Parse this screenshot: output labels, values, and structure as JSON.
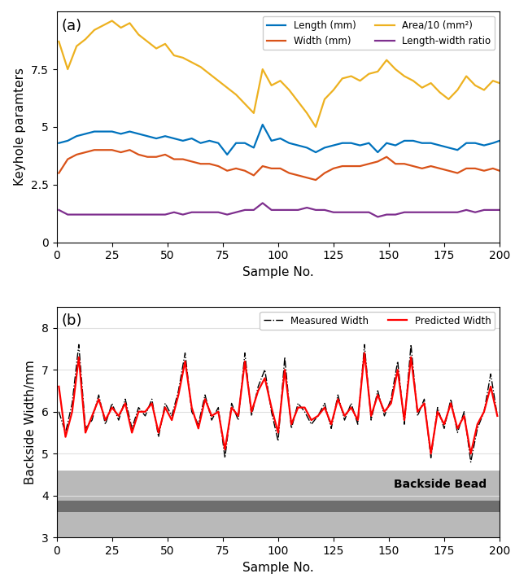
{
  "chart_data": [
    {
      "type": "line",
      "title": "(a)",
      "xlabel": "Sample No.",
      "ylabel": "Keyhole paramters",
      "x": [
        1,
        5,
        9,
        13,
        17,
        21,
        25,
        29,
        33,
        37,
        41,
        45,
        49,
        53,
        57,
        61,
        65,
        69,
        73,
        77,
        81,
        85,
        89,
        93,
        97,
        101,
        105,
        109,
        113,
        117,
        121,
        125,
        129,
        133,
        137,
        141,
        145,
        149,
        153,
        157,
        161,
        165,
        169,
        173,
        177,
        181,
        185,
        189,
        193,
        197,
        200
      ],
      "series": [
        {
          "name": "Length (mm)",
          "color": "#0072BD",
          "line_style": "solid",
          "values": [
            4.3,
            4.4,
            4.6,
            4.7,
            4.8,
            4.8,
            4.8,
            4.7,
            4.8,
            4.7,
            4.6,
            4.5,
            4.6,
            4.5,
            4.4,
            4.5,
            4.3,
            4.4,
            4.3,
            3.8,
            4.3,
            4.3,
            4.1,
            5.1,
            4.4,
            4.5,
            4.3,
            4.2,
            4.1,
            3.9,
            4.1,
            4.2,
            4.3,
            4.3,
            4.2,
            4.3,
            3.9,
            4.3,
            4.2,
            4.4,
            4.4,
            4.3,
            4.3,
            4.2,
            4.1,
            4.0,
            4.3,
            4.3,
            4.2,
            4.3,
            4.4
          ]
        },
        {
          "name": "Width (mm)",
          "color": "#D95319",
          "line_style": "solid",
          "values": [
            3.0,
            3.6,
            3.8,
            3.9,
            4.0,
            4.0,
            4.0,
            3.9,
            4.0,
            3.8,
            3.7,
            3.7,
            3.8,
            3.6,
            3.6,
            3.5,
            3.4,
            3.4,
            3.3,
            3.1,
            3.2,
            3.1,
            2.9,
            3.3,
            3.2,
            3.2,
            3.0,
            2.9,
            2.8,
            2.7,
            3.0,
            3.2,
            3.3,
            3.3,
            3.3,
            3.4,
            3.5,
            3.7,
            3.4,
            3.4,
            3.3,
            3.2,
            3.3,
            3.2,
            3.1,
            3.0,
            3.2,
            3.2,
            3.1,
            3.2,
            3.1
          ]
        },
        {
          "name": "Area/10 (mm²)",
          "color": "#EDB120",
          "line_style": "solid",
          "values": [
            8.7,
            7.5,
            8.5,
            8.8,
            9.2,
            9.4,
            9.6,
            9.3,
            9.5,
            9.0,
            8.7,
            8.4,
            8.6,
            8.1,
            8.0,
            7.8,
            7.6,
            7.3,
            7.0,
            6.7,
            6.4,
            6.0,
            5.6,
            7.5,
            6.8,
            7.0,
            6.6,
            6.1,
            5.6,
            5.0,
            6.2,
            6.6,
            7.1,
            7.2,
            7.0,
            7.3,
            7.4,
            7.9,
            7.5,
            7.2,
            7.0,
            6.7,
            6.9,
            6.5,
            6.2,
            6.6,
            7.2,
            6.8,
            6.6,
            7.0,
            6.9
          ]
        },
        {
          "name": "Length-width ratio",
          "color": "#7E2F8E",
          "line_style": "solid",
          "values": [
            1.4,
            1.2,
            1.2,
            1.2,
            1.2,
            1.2,
            1.2,
            1.2,
            1.2,
            1.2,
            1.2,
            1.2,
            1.2,
            1.3,
            1.2,
            1.3,
            1.3,
            1.3,
            1.3,
            1.2,
            1.3,
            1.4,
            1.4,
            1.7,
            1.4,
            1.4,
            1.4,
            1.4,
            1.5,
            1.4,
            1.4,
            1.3,
            1.3,
            1.3,
            1.3,
            1.3,
            1.1,
            1.2,
            1.2,
            1.3,
            1.3,
            1.3,
            1.3,
            1.3,
            1.3,
            1.3,
            1.4,
            1.3,
            1.4,
            1.4,
            1.4
          ]
        }
      ],
      "xlim": [
        0,
        200
      ],
      "xticks": [
        0,
        25,
        50,
        75,
        100,
        125,
        150,
        175,
        200
      ],
      "ylim": [
        0,
        10
      ],
      "yticks": [
        0,
        2.5,
        5,
        7.5
      ],
      "grid": false,
      "legend": "upper right"
    },
    {
      "type": "line",
      "title": "(b)",
      "xlabel": "Sample No.",
      "ylabel": "Backside Width/mm",
      "annotations": [
        "Backside Bead"
      ],
      "x": [
        1,
        4,
        7,
        10,
        13,
        16,
        19,
        22,
        25,
        28,
        31,
        34,
        37,
        40,
        43,
        46,
        49,
        52,
        55,
        58,
        61,
        64,
        67,
        70,
        73,
        76,
        79,
        82,
        85,
        88,
        91,
        94,
        97,
        100,
        103,
        106,
        109,
        112,
        115,
        118,
        121,
        124,
        127,
        130,
        133,
        136,
        139,
        142,
        145,
        148,
        151,
        154,
        157,
        160,
        163,
        166,
        169,
        172,
        175,
        178,
        181,
        184,
        187,
        190,
        193,
        196,
        199
      ],
      "series": [
        {
          "name": "Measured Width",
          "color": "#000000",
          "line_style": "dashdot",
          "values": [
            6.0,
            5.5,
            6.2,
            7.6,
            5.6,
            5.8,
            6.4,
            5.7,
            6.2,
            5.8,
            6.3,
            5.6,
            6.1,
            5.9,
            6.3,
            5.4,
            6.2,
            5.9,
            6.5,
            7.4,
            6.0,
            5.7,
            6.4,
            5.8,
            6.1,
            4.9,
            6.2,
            5.8,
            7.4,
            5.9,
            6.6,
            7.0,
            6.0,
            5.3,
            7.3,
            5.6,
            6.2,
            6.0,
            5.7,
            5.9,
            6.2,
            5.6,
            6.4,
            5.8,
            6.2,
            5.7,
            7.6,
            5.8,
            6.5,
            5.9,
            6.3,
            7.2,
            5.7,
            7.6,
            5.9,
            6.3,
            4.9,
            6.1,
            5.6,
            6.3,
            5.5,
            6.0,
            4.8,
            5.6,
            6.0,
            6.9,
            5.9
          ]
        },
        {
          "name": "Predicted Width",
          "color": "#FF0000",
          "line_style": "solid",
          "values": [
            6.6,
            5.4,
            6.0,
            7.3,
            5.5,
            5.9,
            6.3,
            5.8,
            6.1,
            5.9,
            6.2,
            5.5,
            6.0,
            6.0,
            6.2,
            5.5,
            6.1,
            5.8,
            6.4,
            7.2,
            6.1,
            5.6,
            6.3,
            5.9,
            6.0,
            5.1,
            6.1,
            5.9,
            7.2,
            6.0,
            6.5,
            6.8,
            6.1,
            5.5,
            7.0,
            5.7,
            6.1,
            6.1,
            5.8,
            5.9,
            6.1,
            5.7,
            6.3,
            5.9,
            6.1,
            5.8,
            7.4,
            5.9,
            6.4,
            6.0,
            6.2,
            7.0,
            5.8,
            7.3,
            6.0,
            6.2,
            5.0,
            6.0,
            5.7,
            6.2,
            5.6,
            5.9,
            5.0,
            5.7,
            6.0,
            6.6,
            5.9
          ]
        }
      ],
      "xlim": [
        0,
        200
      ],
      "xticks": [
        0,
        25,
        50,
        75,
        100,
        125,
        150,
        175,
        200
      ],
      "ylim": [
        3,
        8.5
      ],
      "yticks": [
        3,
        4,
        5,
        6,
        7,
        8
      ],
      "grid": true,
      "legend": "upper right"
    }
  ]
}
